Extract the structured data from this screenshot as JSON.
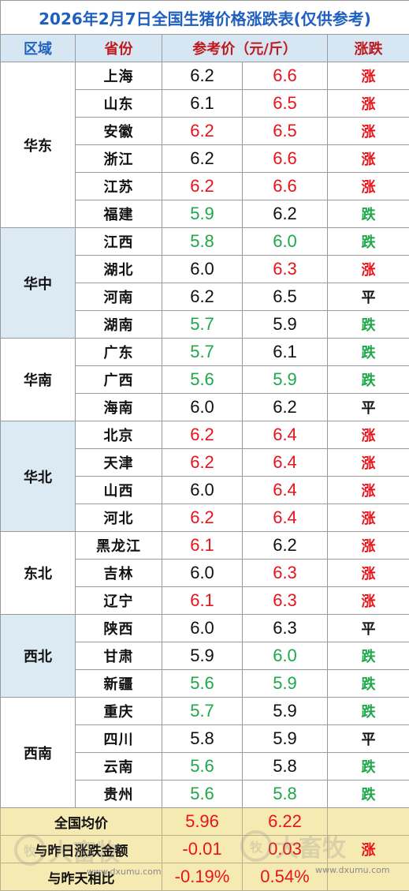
{
  "title": "2026年2月7日全国生猪价格涨跌表(仅供参考)",
  "headers": {
    "region": "区域",
    "province": "省份",
    "price": "参考价（元/斤）",
    "trend": "涨跌"
  },
  "colors": {
    "up": "#e8131b",
    "down": "#1ea84a",
    "flat": "#111111",
    "title": "#1f5fbf",
    "header_bg": "#d6e6f2",
    "summary_bg": "#f6eab3"
  },
  "regions": [
    {
      "name": "华东",
      "rows": [
        {
          "province": "上海",
          "prev": "6.2",
          "prev_color": "black",
          "today": "6.6",
          "today_color": "red",
          "trend": "涨",
          "trend_color": "red"
        },
        {
          "province": "山东",
          "prev": "6.1",
          "prev_color": "black",
          "today": "6.5",
          "today_color": "red",
          "trend": "涨",
          "trend_color": "red"
        },
        {
          "province": "安徽",
          "prev": "6.2",
          "prev_color": "red",
          "today": "6.5",
          "today_color": "red",
          "trend": "涨",
          "trend_color": "red"
        },
        {
          "province": "浙江",
          "prev": "6.2",
          "prev_color": "black",
          "today": "6.6",
          "today_color": "red",
          "trend": "涨",
          "trend_color": "red"
        },
        {
          "province": "江苏",
          "prev": "6.2",
          "prev_color": "red",
          "today": "6.6",
          "today_color": "red",
          "trend": "涨",
          "trend_color": "red"
        },
        {
          "province": "福建",
          "prev": "5.9",
          "prev_color": "green",
          "today": "6.2",
          "today_color": "black",
          "trend": "跌",
          "trend_color": "green"
        }
      ]
    },
    {
      "name": "华中",
      "rows": [
        {
          "province": "江西",
          "prev": "5.8",
          "prev_color": "green",
          "today": "6.0",
          "today_color": "green",
          "trend": "跌",
          "trend_color": "green"
        },
        {
          "province": "湖北",
          "prev": "6.0",
          "prev_color": "black",
          "today": "6.3",
          "today_color": "red",
          "trend": "涨",
          "trend_color": "red"
        },
        {
          "province": "河南",
          "prev": "6.2",
          "prev_color": "black",
          "today": "6.5",
          "today_color": "black",
          "trend": "平",
          "trend_color": "black"
        },
        {
          "province": "湖南",
          "prev": "5.7",
          "prev_color": "green",
          "today": "5.9",
          "today_color": "black",
          "trend": "跌",
          "trend_color": "green"
        }
      ]
    },
    {
      "name": "华南",
      "rows": [
        {
          "province": "广东",
          "prev": "5.7",
          "prev_color": "green",
          "today": "6.1",
          "today_color": "black",
          "trend": "跌",
          "trend_color": "green"
        },
        {
          "province": "广西",
          "prev": "5.6",
          "prev_color": "green",
          "today": "5.9",
          "today_color": "green",
          "trend": "跌",
          "trend_color": "green"
        },
        {
          "province": "海南",
          "prev": "6.0",
          "prev_color": "black",
          "today": "6.2",
          "today_color": "black",
          "trend": "平",
          "trend_color": "black"
        }
      ]
    },
    {
      "name": "华北",
      "rows": [
        {
          "province": "北京",
          "prev": "6.2",
          "prev_color": "red",
          "today": "6.4",
          "today_color": "red",
          "trend": "涨",
          "trend_color": "red"
        },
        {
          "province": "天津",
          "prev": "6.2",
          "prev_color": "red",
          "today": "6.4",
          "today_color": "red",
          "trend": "涨",
          "trend_color": "red"
        },
        {
          "province": "山西",
          "prev": "6.0",
          "prev_color": "black",
          "today": "6.4",
          "today_color": "red",
          "trend": "涨",
          "trend_color": "red"
        },
        {
          "province": "河北",
          "prev": "6.2",
          "prev_color": "red",
          "today": "6.4",
          "today_color": "red",
          "trend": "涨",
          "trend_color": "red"
        }
      ]
    },
    {
      "name": "东北",
      "rows": [
        {
          "province": "黑龙江",
          "prev": "6.1",
          "prev_color": "red",
          "today": "6.2",
          "today_color": "black",
          "trend": "涨",
          "trend_color": "red"
        },
        {
          "province": "吉林",
          "prev": "6.0",
          "prev_color": "black",
          "today": "6.3",
          "today_color": "red",
          "trend": "涨",
          "trend_color": "red"
        },
        {
          "province": "辽宁",
          "prev": "6.1",
          "prev_color": "red",
          "today": "6.3",
          "today_color": "red",
          "trend": "涨",
          "trend_color": "red"
        }
      ]
    },
    {
      "name": "西北",
      "rows": [
        {
          "province": "陕西",
          "prev": "6.0",
          "prev_color": "black",
          "today": "6.3",
          "today_color": "black",
          "trend": "平",
          "trend_color": "black"
        },
        {
          "province": "甘肃",
          "prev": "5.9",
          "prev_color": "black",
          "today": "6.0",
          "today_color": "green",
          "trend": "跌",
          "trend_color": "green"
        },
        {
          "province": "新疆",
          "prev": "5.6",
          "prev_color": "green",
          "today": "5.9",
          "today_color": "green",
          "trend": "跌",
          "trend_color": "green"
        }
      ]
    },
    {
      "name": "西南",
      "rows": [
        {
          "province": "重庆",
          "prev": "5.7",
          "prev_color": "green",
          "today": "5.9",
          "today_color": "black",
          "trend": "跌",
          "trend_color": "green"
        },
        {
          "province": "四川",
          "prev": "5.8",
          "prev_color": "black",
          "today": "5.9",
          "today_color": "black",
          "trend": "平",
          "trend_color": "black"
        },
        {
          "province": "云南",
          "prev": "5.6",
          "prev_color": "green",
          "today": "5.8",
          "today_color": "black",
          "trend": "跌",
          "trend_color": "green"
        },
        {
          "province": "贵州",
          "prev": "5.6",
          "prev_color": "green",
          "today": "5.8",
          "today_color": "green",
          "trend": "跌",
          "trend_color": "green"
        }
      ]
    }
  ],
  "summary": [
    {
      "label": "全国均价",
      "prev": "5.96",
      "today": "6.22",
      "trend": ""
    },
    {
      "label": "与昨日涨跌金额",
      "prev": "-0.01",
      "today": "0.03",
      "trend": "涨"
    },
    {
      "label": "与昨天相比",
      "prev": "-0.19%",
      "today": "0.54%",
      "trend": ""
    }
  ],
  "watermark": {
    "brand": "大畜牧",
    "url": "www.dxumu.com",
    "logo_glyph": "牧"
  }
}
